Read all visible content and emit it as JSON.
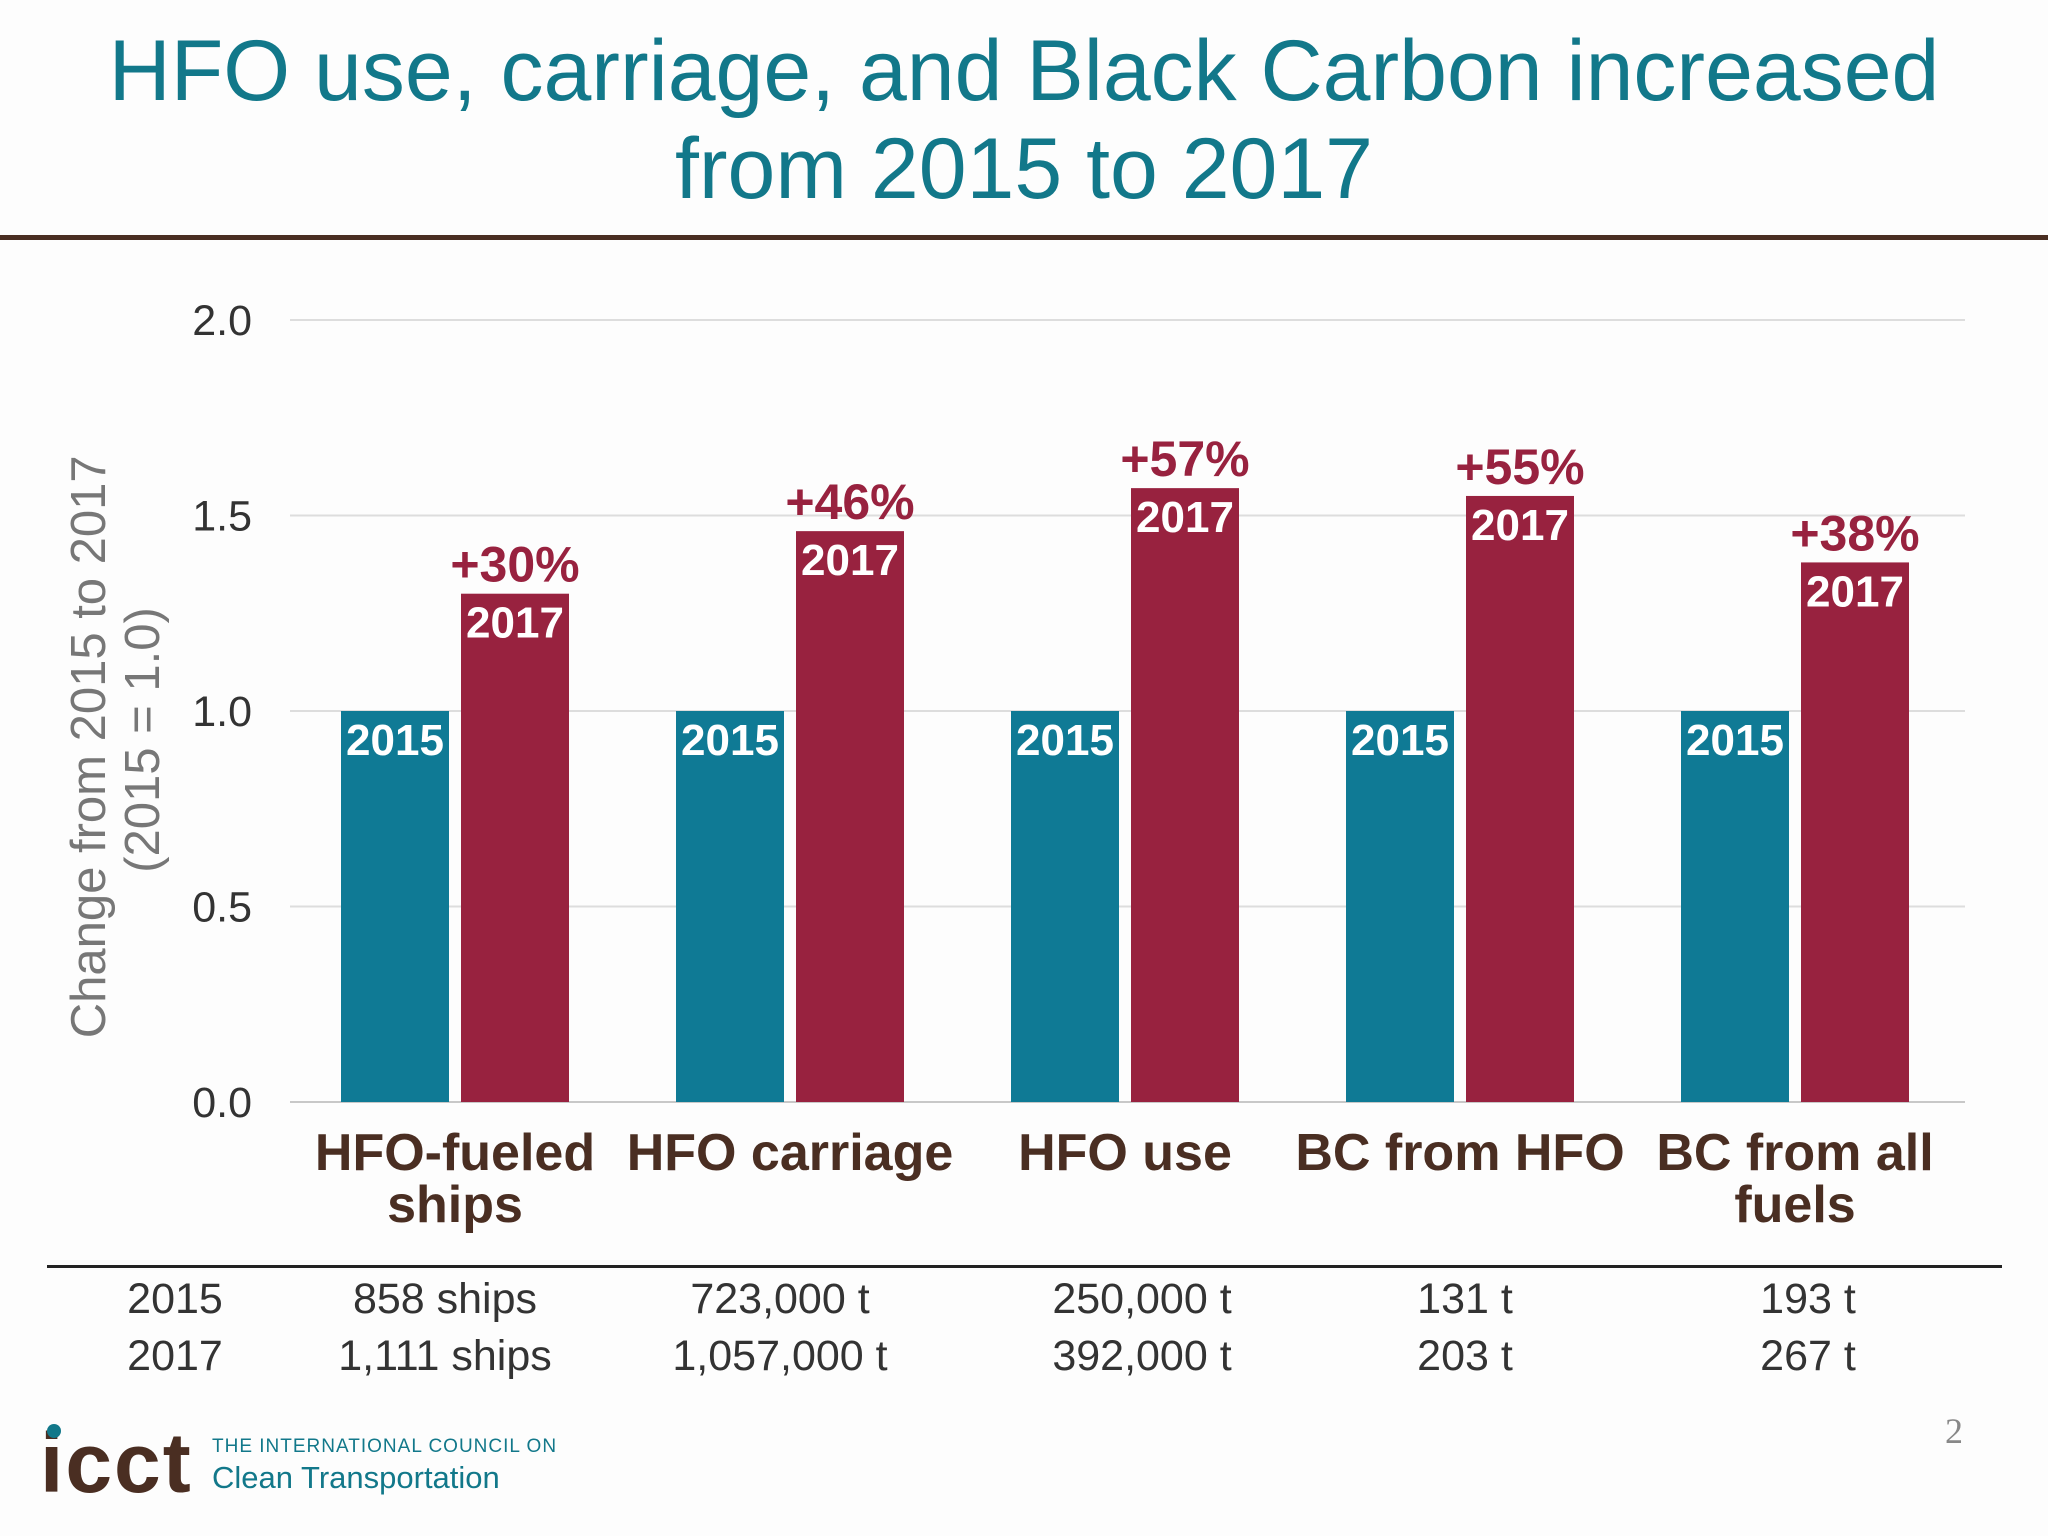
{
  "title": {
    "line1": "HFO use, carriage, and Black Carbon increased",
    "line2": "from 2015 to 2017"
  },
  "colors": {
    "title": "#12788a",
    "series_2015": "#0f7a95",
    "series_2017": "#98223f",
    "category_text": "#4a2e22",
    "rule": "#4a2e22"
  },
  "chart_data": {
    "type": "bar",
    "title": "",
    "ylabel_line1": "Change from 2015 to 2017",
    "ylabel_line2": "(2015 = 1.0)",
    "xlabel": "",
    "ylim": [
      0,
      2.0
    ],
    "yticks": [
      "0.0",
      "0.5",
      "1.0",
      "1.5",
      "2.0"
    ],
    "grid": true,
    "categories": [
      {
        "line1": "HFO-fueled",
        "line2": "ships"
      },
      {
        "line1": "HFO carriage",
        "line2": ""
      },
      {
        "line1": "HFO use",
        "line2": ""
      },
      {
        "line1": "BC from HFO",
        "line2": ""
      },
      {
        "line1": "BC from all",
        "line2": "fuels"
      }
    ],
    "series": [
      {
        "name": "2015",
        "values": [
          1.0,
          1.0,
          1.0,
          1.0,
          1.0
        ]
      },
      {
        "name": "2017",
        "values": [
          1.3,
          1.46,
          1.57,
          1.55,
          1.38
        ]
      }
    ],
    "annotations": [
      "+30%",
      "+46%",
      "+57%",
      "+55%",
      "+38%"
    ]
  },
  "table": {
    "rows": [
      {
        "year": "2015",
        "cells": [
          "858 ships",
          "723,000 t",
          "250,000 t",
          "131 t",
          "193 t"
        ]
      },
      {
        "year": "2017",
        "cells": [
          "1,111 ships",
          "1,057,000 t",
          "392,000 t",
          "203 t",
          "267 t"
        ]
      }
    ]
  },
  "logo": {
    "mark": "icct",
    "line1": "THE INTERNATIONAL COUNCIL ON",
    "line2": "Clean Transportation"
  },
  "page_number": "2"
}
